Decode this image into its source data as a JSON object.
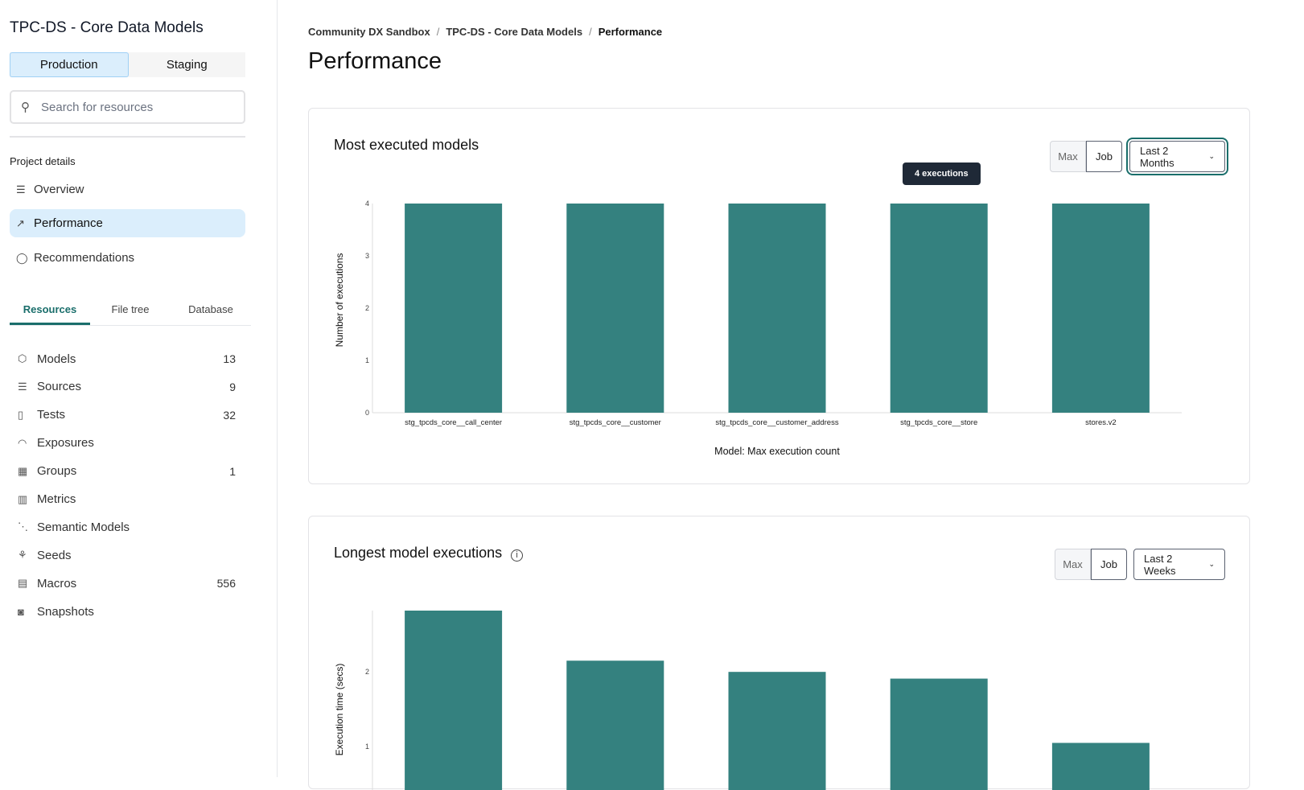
{
  "sidebar": {
    "project_title": "TPC-DS - Core Data Models",
    "environments": [
      "Production",
      "Staging"
    ],
    "search_placeholder": "Search for resources",
    "project_details_label": "Project details",
    "nav": [
      {
        "label": "Overview",
        "icon": "list-icon"
      },
      {
        "label": "Performance",
        "icon": "chart-line-icon"
      },
      {
        "label": "Recommendations",
        "icon": "lightbulb-icon"
      }
    ],
    "tabs": [
      "Resources",
      "File tree",
      "Database"
    ],
    "resources": [
      {
        "label": "Models",
        "count": "13",
        "icon": "cube-icon"
      },
      {
        "label": "Sources",
        "count": "9",
        "icon": "database-icon"
      },
      {
        "label": "Tests",
        "count": "32",
        "icon": "clipboard-icon"
      },
      {
        "label": "Exposures",
        "count": "",
        "icon": "gauge-icon"
      },
      {
        "label": "Groups",
        "count": "1",
        "icon": "grid-icon"
      },
      {
        "label": "Metrics",
        "count": "",
        "icon": "bar-chart-icon"
      },
      {
        "label": "Semantic Models",
        "count": "",
        "icon": "nodes-icon"
      },
      {
        "label": "Seeds",
        "count": "",
        "icon": "seedling-icon"
      },
      {
        "label": "Macros",
        "count": "556",
        "icon": "file-icon"
      },
      {
        "label": "Snapshots",
        "count": "",
        "icon": "camera-icon"
      }
    ]
  },
  "breadcrumb": [
    "Community DX Sandbox",
    "TPC-DS - Core Data Models",
    "Performance"
  ],
  "page_title": "Performance",
  "accent_color": "#34817f",
  "cards": [
    {
      "title": "Most executed models",
      "toggle": [
        "Max",
        "Job"
      ],
      "range": "Last 2 Months",
      "tooltip": "4 executions"
    },
    {
      "title": "Longest model executions",
      "toggle": [
        "Max",
        "Job"
      ],
      "range": "Last 2 Weeks"
    }
  ],
  "chart_data": [
    {
      "type": "bar",
      "categories": [
        "stg_tpcds_core__call_center",
        "stg_tpcds_core__customer",
        "stg_tpcds_core__customer_address",
        "stg_tpcds_core__store",
        "stores.v2"
      ],
      "values": [
        4,
        4,
        4,
        4,
        4
      ],
      "xlabel": "Model: Max execution count",
      "ylabel": "Number of executions",
      "ylim": [
        0,
        4
      ],
      "yticks": [
        0,
        1,
        2,
        3,
        4
      ],
      "grid": false
    },
    {
      "type": "bar",
      "values": [
        2.82,
        2.15,
        2.0,
        1.91,
        1.05
      ],
      "ylabel": "Execution time (secs)",
      "yticks": [
        1,
        2
      ],
      "grid": false
    }
  ]
}
